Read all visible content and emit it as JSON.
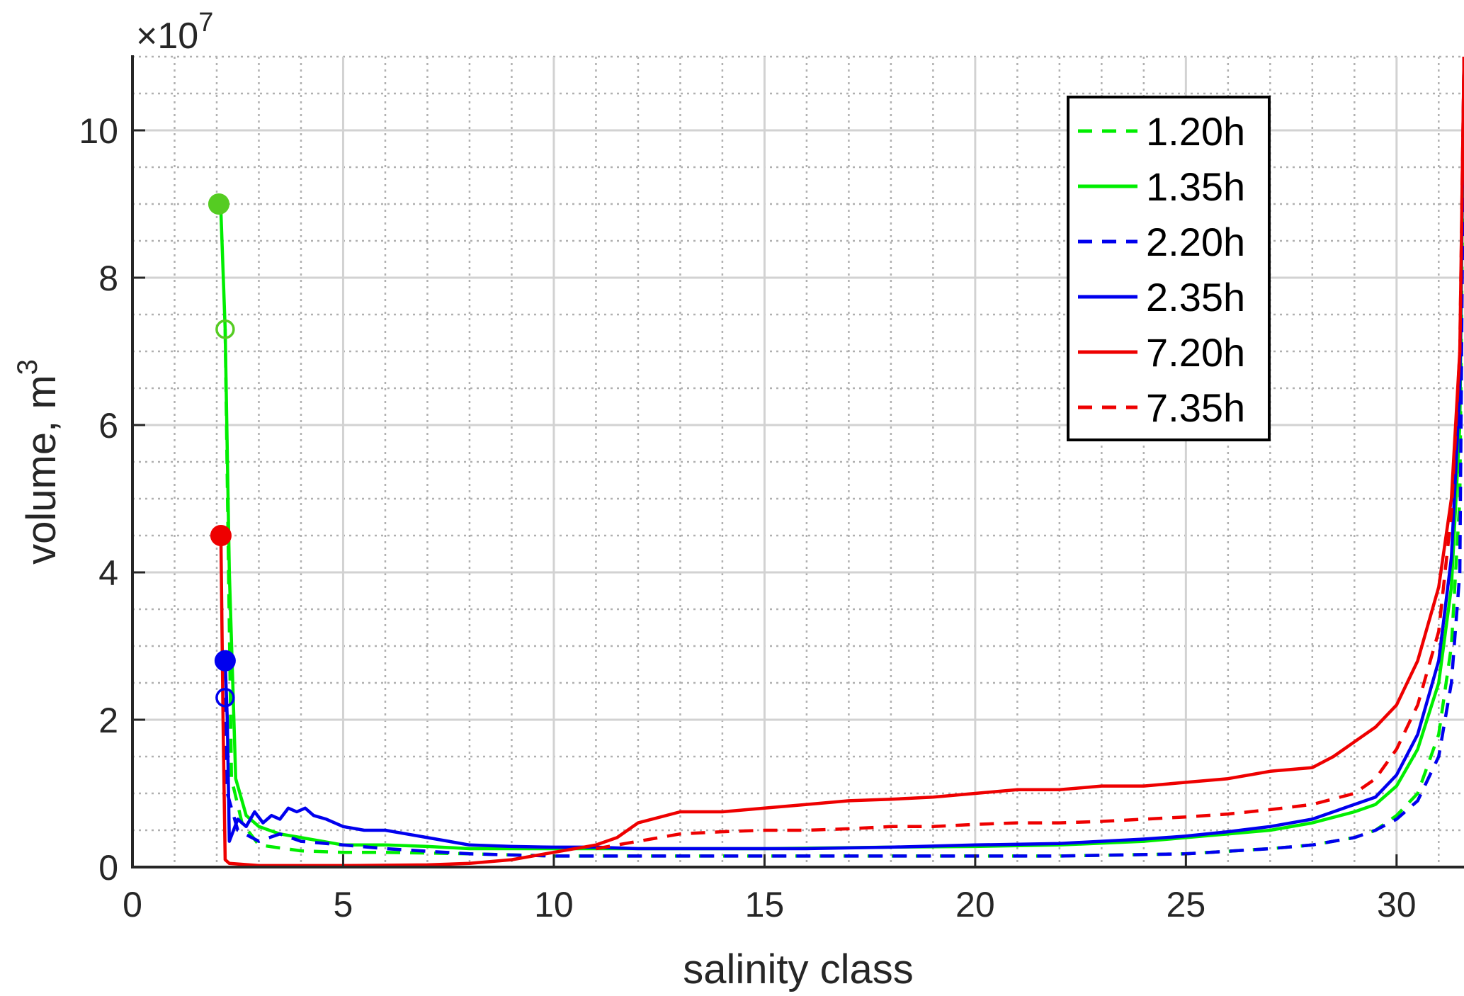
{
  "chart_data": {
    "type": "line",
    "title": "",
    "xlabel": "salinity class",
    "ylabel": "volume, m",
    "ylabel_superscript": "3",
    "y_exponent_label": "×10",
    "y_exponent_power": "7",
    "xlim": [
      0,
      31.6
    ],
    "ylim": [
      0,
      11
    ],
    "y_scale_factor": 10000000,
    "x_ticks": [
      0,
      5,
      10,
      15,
      20,
      25,
      30
    ],
    "x_tick_labels": [
      "0",
      "5",
      "10",
      "15",
      "20",
      "25",
      "30"
    ],
    "y_ticks": [
      0,
      2,
      4,
      6,
      8,
      10
    ],
    "y_tick_labels": [
      "0",
      "2",
      "4",
      "6",
      "8",
      "10"
    ],
    "grid": true,
    "minor_grid": true,
    "legend_position": "top-right",
    "series": [
      {
        "name": "1.20h",
        "color": "#00ee00",
        "dash": "dashed",
        "x": [
          2.2,
          2.35,
          2.6,
          3,
          4,
          5,
          6,
          8,
          10,
          12,
          15,
          18,
          20,
          22,
          25,
          27,
          28,
          29,
          29.5,
          30,
          30.5,
          31,
          31.3,
          31.5,
          31.6
        ],
        "y": [
          7.3,
          1.2,
          0.6,
          0.3,
          0.22,
          0.2,
          0.2,
          0.18,
          0.15,
          0.15,
          0.15,
          0.15,
          0.15,
          0.15,
          0.18,
          0.25,
          0.3,
          0.4,
          0.5,
          0.7,
          1.0,
          1.8,
          3.0,
          5.0,
          11.0
        ]
      },
      {
        "name": "1.35h",
        "color": "#00ee00",
        "dash": "solid",
        "x": [
          2.05,
          2.1,
          2.2,
          2.3,
          2.45,
          2.7,
          3,
          3.5,
          4,
          5,
          6,
          7,
          8,
          10,
          12,
          15,
          18,
          20,
          22,
          24,
          25,
          26,
          27,
          28,
          29,
          29.5,
          30,
          30.5,
          31,
          31.3,
          31.5,
          31.6
        ],
        "y": [
          9.0,
          8.9,
          7.3,
          4.0,
          1.2,
          0.7,
          0.55,
          0.45,
          0.4,
          0.3,
          0.3,
          0.28,
          0.25,
          0.25,
          0.25,
          0.25,
          0.27,
          0.28,
          0.3,
          0.35,
          0.4,
          0.45,
          0.5,
          0.6,
          0.75,
          0.85,
          1.1,
          1.6,
          2.5,
          3.8,
          6.0,
          11.0
        ]
      },
      {
        "name": "2.20h",
        "color": "#0000ee",
        "dash": "dashed",
        "x": [
          2.2,
          2.25,
          2.5,
          3,
          3.5,
          4,
          5,
          6,
          8,
          10,
          12,
          15,
          18,
          20,
          22,
          25,
          27,
          28,
          29,
          29.5,
          30,
          30.5,
          31,
          31.3,
          31.5,
          31.6
        ],
        "y": [
          2.3,
          1.0,
          0.5,
          0.35,
          0.45,
          0.35,
          0.3,
          0.25,
          0.18,
          0.15,
          0.15,
          0.15,
          0.15,
          0.15,
          0.15,
          0.18,
          0.25,
          0.3,
          0.4,
          0.5,
          0.65,
          0.9,
          1.5,
          2.5,
          4.0,
          11.0
        ]
      },
      {
        "name": "2.35h",
        "color": "#0000ee",
        "dash": "solid",
        "x": [
          2.2,
          2.25,
          2.3,
          2.5,
          2.7,
          2.9,
          3.1,
          3.3,
          3.5,
          3.7,
          3.9,
          4.1,
          4.3,
          4.6,
          5,
          5.5,
          6,
          6.5,
          7,
          8,
          9,
          10,
          11,
          12,
          14,
          16,
          18,
          20,
          22,
          24,
          25,
          26,
          27,
          28,
          29,
          29.5,
          30,
          30.5,
          31,
          31.3,
          31.5,
          31.6
        ],
        "y": [
          2.8,
          2.0,
          0.35,
          0.65,
          0.55,
          0.75,
          0.6,
          0.7,
          0.65,
          0.8,
          0.75,
          0.8,
          0.7,
          0.65,
          0.55,
          0.5,
          0.5,
          0.45,
          0.4,
          0.3,
          0.28,
          0.27,
          0.27,
          0.25,
          0.25,
          0.25,
          0.27,
          0.3,
          0.32,
          0.38,
          0.42,
          0.48,
          0.55,
          0.65,
          0.85,
          0.95,
          1.25,
          1.8,
          2.8,
          4.2,
          6.5,
          11.0
        ]
      },
      {
        "name": "7.20h",
        "color": "#ee0000",
        "dash": "solid",
        "x": [
          2.1,
          2.15,
          2.2,
          2.3,
          3,
          5,
          7,
          8,
          9,
          10,
          11,
          11.5,
          12,
          13,
          14,
          15,
          16,
          17,
          18,
          19,
          20,
          21,
          22,
          23,
          24,
          25,
          26,
          27,
          28,
          28.5,
          29,
          29.5,
          30,
          30.5,
          31,
          31.3,
          31.5,
          31.6
        ],
        "y": [
          4.5,
          2.0,
          0.1,
          0.05,
          0.02,
          0.02,
          0.03,
          0.05,
          0.1,
          0.2,
          0.3,
          0.4,
          0.6,
          0.75,
          0.75,
          0.8,
          0.85,
          0.9,
          0.92,
          0.95,
          1.0,
          1.05,
          1.05,
          1.1,
          1.1,
          1.15,
          1.2,
          1.3,
          1.35,
          1.5,
          1.7,
          1.9,
          2.2,
          2.8,
          3.8,
          5.0,
          7.0,
          11.0
        ]
      },
      {
        "name": "7.35h",
        "color": "#ee0000",
        "dash": "dashed",
        "x": [
          11,
          12,
          13,
          14,
          15,
          16,
          17,
          18,
          19,
          20,
          21,
          22,
          23,
          24,
          25,
          26,
          27,
          28,
          29,
          29.5,
          30,
          30.5,
          31,
          31.3,
          31.5,
          31.6
        ],
        "y": [
          0.25,
          0.35,
          0.45,
          0.48,
          0.5,
          0.5,
          0.52,
          0.55,
          0.55,
          0.58,
          0.6,
          0.6,
          0.62,
          0.65,
          0.68,
          0.72,
          0.78,
          0.85,
          1.0,
          1.2,
          1.6,
          2.2,
          3.2,
          4.8,
          7.0,
          11.0
        ]
      }
    ],
    "markers": [
      {
        "x": 2.05,
        "y": 9.0,
        "color": "#55cc22",
        "filled": true
      },
      {
        "x": 2.2,
        "y": 7.3,
        "color": "#55cc22",
        "filled": false
      },
      {
        "x": 2.1,
        "y": 4.5,
        "color": "#ee0000",
        "filled": true
      },
      {
        "x": 2.2,
        "y": 2.8,
        "color": "#0000ee",
        "filled": true
      },
      {
        "x": 2.2,
        "y": 2.3,
        "color": "#0000ee",
        "filled": false
      }
    ]
  }
}
